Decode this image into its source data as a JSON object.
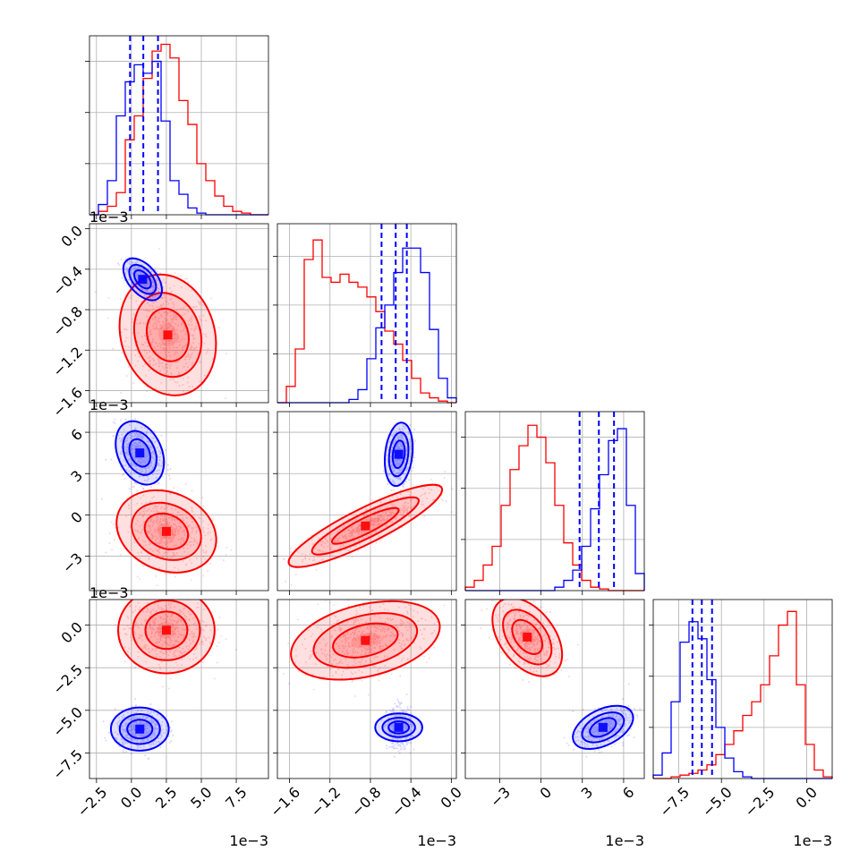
{
  "chart_data": {
    "type": "corner",
    "grid": true,
    "colors": {
      "series_a": "#ff0000",
      "series_b": "#0000ff"
    },
    "series": [
      {
        "color": "#ff0000"
      },
      {
        "color": "#0000ff"
      }
    ],
    "params": [
      {
        "range": [
          -3.0,
          9.8
        ],
        "ticks": [
          -2.5,
          0.0,
          2.5,
          5.0,
          7.5
        ],
        "tick_labels": [
          "−2.5",
          "0.0",
          "2.5",
          "5.0",
          "7.5"
        ],
        "offset": "1e−3"
      },
      {
        "range": [
          -1.72,
          0.05
        ],
        "ticks": [
          -1.6,
          -1.2,
          -0.8,
          -0.4,
          0.0
        ],
        "tick_labels": [
          "−1.6",
          "−1.2",
          "−0.8",
          "−0.4",
          "0.0"
        ],
        "offset": "1e−3"
      },
      {
        "range": [
          -5.5,
          7.5
        ],
        "ticks": [
          -3,
          0,
          3,
          6
        ],
        "tick_labels": [
          "−3",
          "0",
          "3",
          "6"
        ],
        "offset": "1e−3"
      },
      {
        "range": [
          -9.0,
          1.5
        ],
        "ticks": [
          -7.5,
          -5.0,
          -2.5,
          0.0
        ],
        "tick_labels": [
          "−7.5",
          "−5.0",
          "−2.5",
          "0.0"
        ],
        "offset": "1e−3"
      }
    ],
    "histograms": [
      {
        "bins": 20,
        "ymax": 1.05,
        "red": [
          0,
          0.02,
          0.05,
          0.13,
          0.44,
          0.58,
          0.8,
          0.96,
          1.0,
          0.92,
          0.67,
          0.53,
          0.3,
          0.2,
          0.11,
          0.05,
          0.02,
          0.01,
          0,
          0
        ],
        "blue": [
          0,
          0.06,
          0.2,
          0.58,
          0.78,
          0.88,
          0.83,
          0.9,
          0.55,
          0.2,
          0.12,
          0.04,
          0.01,
          0,
          0,
          0,
          0,
          0,
          0,
          0
        ],
        "quantiles": [
          -0.1,
          0.85,
          1.9
        ]
      },
      {
        "bins": 20,
        "ymax": 1.1,
        "red": [
          0,
          0.1,
          0.33,
          0.88,
          1.0,
          0.77,
          0.74,
          0.79,
          0.74,
          0.71,
          0.65,
          0.56,
          0.44,
          0.36,
          0.26,
          0.15,
          0.06,
          0.03,
          0.01,
          0
        ],
        "blue": [
          0,
          0,
          0,
          0,
          0,
          0,
          0,
          0,
          0.02,
          0.08,
          0.27,
          0.46,
          0.6,
          0.8,
          0.95,
          0.95,
          0.8,
          0.45,
          0.15,
          0.03
        ],
        "quantiles": [
          -0.69,
          -0.55,
          -0.44
        ]
      },
      {
        "bins": 20,
        "ymax": 1.05,
        "red": [
          0.02,
          0.06,
          0.15,
          0.26,
          0.5,
          0.71,
          0.85,
          0.97,
          0.9,
          0.75,
          0.5,
          0.28,
          0.15,
          0.06,
          0.02,
          0.01,
          0,
          0,
          0,
          0
        ],
        "blue": [
          0,
          0,
          0,
          0,
          0,
          0,
          0,
          0,
          0,
          0,
          0.02,
          0.06,
          0.12,
          0.26,
          0.48,
          0.68,
          0.88,
          0.95,
          0.5,
          0.1
        ],
        "quantiles": [
          2.8,
          4.2,
          5.3
        ]
      },
      {
        "bins": 20,
        "ymax": 1.05,
        "red": [
          0,
          0,
          0.01,
          0.02,
          0.03,
          0.05,
          0.08,
          0.14,
          0.2,
          0.28,
          0.37,
          0.45,
          0.55,
          0.72,
          0.9,
          0.98,
          0.55,
          0.2,
          0.05,
          0.01
        ],
        "blue": [
          0.02,
          0.15,
          0.45,
          0.8,
          0.92,
          0.82,
          0.58,
          0.3,
          0.12,
          0.04,
          0.01,
          0,
          0,
          0,
          0,
          0,
          0,
          0,
          0,
          0
        ],
        "quantiles": [
          -6.7,
          -6.15,
          -5.55
        ]
      }
    ],
    "pairs": [
      {
        "x": 0,
        "y": 1,
        "red": {
          "mx": 2.6,
          "my": -1.05,
          "sx": 1.5,
          "sy": 0.26,
          "rho": -0.15
        },
        "blue": {
          "mx": 0.8,
          "my": -0.5,
          "sx": 0.6,
          "sy": 0.09,
          "rho": -0.5
        }
      },
      {
        "x": 0,
        "y": 2,
        "red": {
          "mx": 2.5,
          "my": -1.2,
          "sx": 1.55,
          "sy": 1.3,
          "rho": -0.2
        },
        "blue": {
          "mx": 0.6,
          "my": 4.5,
          "sx": 0.75,
          "sy": 1.0,
          "rho": -0.3
        }
      },
      {
        "x": 0,
        "y": 3,
        "red": {
          "mx": 2.5,
          "my": -0.3,
          "sx": 1.5,
          "sy": 1.1,
          "rho": 0.0
        },
        "blue": {
          "mx": 0.6,
          "my": -6.1,
          "sx": 0.9,
          "sy": 0.55,
          "rho": 0.0
        }
      },
      {
        "x": 1,
        "y": 2,
        "red": {
          "mx": -0.85,
          "my": -0.8,
          "sx": 0.33,
          "sy": 1.3,
          "rho": 0.88
        },
        "blue": {
          "mx": -0.52,
          "my": 4.4,
          "sx": 0.06,
          "sy": 1.0,
          "rho": 0.2
        }
      },
      {
        "x": 1,
        "y": 3,
        "red": {
          "mx": -0.85,
          "my": -0.9,
          "sx": 0.32,
          "sy": 1.0,
          "rho": 0.35
        },
        "blue": {
          "mx": -0.52,
          "my": -6.0,
          "sx": 0.06,
          "sy": 0.6,
          "rho": 0.0
        }
      },
      {
        "x": 2,
        "y": 3,
        "red": {
          "mx": -1.0,
          "my": -0.7,
          "sx": 1.1,
          "sy": 1.0,
          "rho": -0.45
        },
        "blue": {
          "mx": 4.5,
          "my": -6.0,
          "sx": 0.95,
          "sy": 0.55,
          "rho": 0.45
        }
      }
    ]
  }
}
